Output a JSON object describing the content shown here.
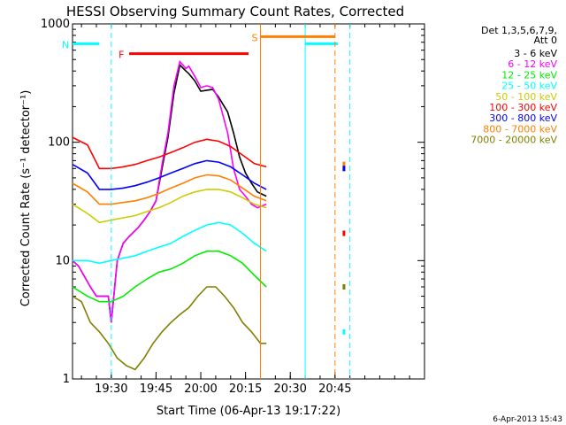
{
  "chart_data": {
    "type": "line",
    "title": "HESSI Observing Summary Count Rates, Corrected",
    "xlabel": "Start Time (06-Apr-13 19:17:22)",
    "ylabel": "Corrected Count Rate (s⁻¹ detector⁻¹)",
    "yscale": "log",
    "ylim": [
      1,
      1000
    ],
    "xlim_minutes_utc": [
      1157,
      1275
    ],
    "x_ticks": [
      {
        "label": "19:30",
        "m": 1170
      },
      {
        "label": "19:45",
        "m": 1185
      },
      {
        "label": "20:00",
        "m": 1200
      },
      {
        "label": "20:15",
        "m": 1215
      },
      {
        "label": "20:30",
        "m": 1230
      },
      {
        "label": "20:45",
        "m": 1245
      }
    ],
    "y_ticks": [
      {
        "label": "1",
        "v": 1
      },
      {
        "label": "10",
        "v": 10
      },
      {
        "label": "100",
        "v": 100
      },
      {
        "label": "1000",
        "v": 1000
      }
    ],
    "legend_header": [
      "Det 1,3,5,6,7,9,",
      "Att 0"
    ],
    "legend_position": "right",
    "series": [
      {
        "name": "3 - 6 keV",
        "color": "#000000",
        "x": [
          1157,
          1159,
          1163,
          1165,
          1169,
          1170,
          1172,
          1174,
          1176,
          1179,
          1181,
          1183,
          1185,
          1187,
          1189,
          1191,
          1193,
          1195,
          1196,
          1198,
          1200,
          1202,
          1204,
          1206,
          1209,
          1211,
          1213,
          1215,
          1217,
          1219,
          1222
        ],
        "y": [
          10,
          9,
          6,
          5,
          5,
          3,
          10,
          14,
          16,
          19,
          22,
          26,
          32,
          60,
          110,
          260,
          450,
          400,
          380,
          330,
          270,
          275,
          280,
          240,
          180,
          120,
          75,
          55,
          45,
          38,
          35
        ]
      },
      {
        "name": "6 - 12 keV",
        "color": "#ff00ff",
        "x": [
          1157,
          1159,
          1163,
          1165,
          1169,
          1170,
          1172,
          1174,
          1176,
          1179,
          1181,
          1183,
          1185,
          1187,
          1189,
          1191,
          1193,
          1195,
          1196,
          1198,
          1200,
          1202,
          1204,
          1206,
          1209,
          1211,
          1213,
          1215,
          1217,
          1219,
          1222
        ],
        "y": [
          10,
          9,
          6,
          5,
          5,
          3,
          10,
          14,
          16,
          19,
          22,
          26,
          32,
          65,
          120,
          300,
          480,
          420,
          440,
          360,
          290,
          300,
          290,
          230,
          120,
          60,
          40,
          35,
          30,
          28,
          30
        ]
      },
      {
        "name": "12 - 25 keV",
        "color": "#00ee00",
        "x": [
          1157,
          1162,
          1166,
          1170,
          1174,
          1178,
          1182,
          1186,
          1190,
          1194,
          1198,
          1202,
          1206,
          1210,
          1214,
          1218,
          1222
        ],
        "y": [
          6,
          5,
          4.5,
          4.5,
          5,
          6,
          7,
          8,
          8.5,
          9.5,
          11,
          12,
          12,
          11,
          9.5,
          7.5,
          6
        ]
      },
      {
        "name": "25 - 50 keV",
        "color": "#00ffff",
        "x": [
          1157,
          1162,
          1166,
          1170,
          1174,
          1178,
          1182,
          1186,
          1190,
          1194,
          1198,
          1202,
          1206,
          1210,
          1214,
          1218,
          1222
        ],
        "y": [
          10,
          10,
          9.5,
          10,
          10.5,
          11,
          12,
          13,
          14,
          16,
          18,
          20,
          21,
          20,
          17,
          14,
          12
        ]
      },
      {
        "name": "50 - 100 keV",
        "color": "#cccc00",
        "x": [
          1157,
          1162,
          1166,
          1170,
          1174,
          1178,
          1182,
          1186,
          1190,
          1194,
          1198,
          1202,
          1206,
          1210,
          1214,
          1218,
          1222
        ],
        "y": [
          30,
          25,
          21,
          22,
          23,
          24,
          26,
          28,
          31,
          35,
          38,
          40,
          40,
          38,
          34,
          30,
          28
        ]
      },
      {
        "name": "100 - 300 keV",
        "color": "#ff0000",
        "x": [
          1157,
          1162,
          1166,
          1170,
          1174,
          1178,
          1182,
          1186,
          1190,
          1194,
          1198,
          1202,
          1206,
          1210,
          1214,
          1218,
          1222
        ],
        "y": [
          110,
          95,
          60,
          60,
          62,
          65,
          70,
          75,
          82,
          90,
          100,
          106,
          102,
          92,
          78,
          66,
          62
        ]
      },
      {
        "name": "300 - 800 keV",
        "color": "#0000ff",
        "x": [
          1157,
          1162,
          1166,
          1170,
          1174,
          1178,
          1182,
          1186,
          1190,
          1194,
          1198,
          1202,
          1206,
          1210,
          1214,
          1218,
          1222
        ],
        "y": [
          65,
          55,
          40,
          40,
          41,
          43,
          46,
          50,
          55,
          60,
          66,
          70,
          68,
          62,
          53,
          45,
          40
        ]
      },
      {
        "name": "800 - 7000 keV",
        "color": "#ff8000",
        "x": [
          1157,
          1162,
          1166,
          1170,
          1174,
          1178,
          1182,
          1186,
          1190,
          1194,
          1198,
          1202,
          1206,
          1210,
          1214,
          1218,
          1222
        ],
        "y": [
          45,
          38,
          30,
          30,
          31,
          32,
          34,
          37,
          41,
          45,
          50,
          53,
          52,
          48,
          41,
          35,
          32
        ]
      },
      {
        "name": "7000 - 20000 keV",
        "color": "#808000",
        "x": [
          1157,
          1160,
          1163,
          1166,
          1169,
          1172,
          1175,
          1178,
          1181,
          1184,
          1187,
          1190,
          1193,
          1196,
          1199,
          1202,
          1205,
          1208,
          1211,
          1214,
          1217,
          1220,
          1222
        ],
        "y": [
          5,
          4.5,
          3,
          2.5,
          2,
          1.5,
          1.3,
          1.2,
          1.5,
          2,
          2.5,
          3,
          3.5,
          4,
          5,
          6,
          6,
          5,
          4,
          3,
          2.5,
          2,
          2
        ]
      }
    ],
    "late_points": [
      {
        "m": 1248,
        "y": 65,
        "color": "#ff8000"
      },
      {
        "m": 1248,
        "y": 60,
        "color": "#0000ff"
      },
      {
        "m": 1248,
        "y": 17,
        "color": "#ff0000"
      },
      {
        "m": 1248,
        "y": 6,
        "color": "#808000"
      },
      {
        "m": 1248,
        "y": 2.5,
        "color": "#00ffff"
      }
    ],
    "flags": [
      {
        "label": "N",
        "color": "#00ffff",
        "y": 680,
        "segments": [
          [
            1157,
            1166
          ],
          [
            1235,
            1246
          ]
        ],
        "dashed_at": [
          1170,
          1250
        ],
        "solid_at": [
          1235
        ]
      },
      {
        "label": "F",
        "color": "#ff0000",
        "y": 560,
        "segments": [
          [
            1176,
            1216
          ]
        ]
      },
      {
        "label": "S",
        "color": "#ff8000",
        "y": 780,
        "segments": [
          [
            1220,
            1245
          ]
        ],
        "solid_at": [
          1220
        ],
        "dashed_at": [
          1245
        ]
      }
    ]
  },
  "footer": {
    "timestamp": "6-Apr-2013 15:43"
  }
}
